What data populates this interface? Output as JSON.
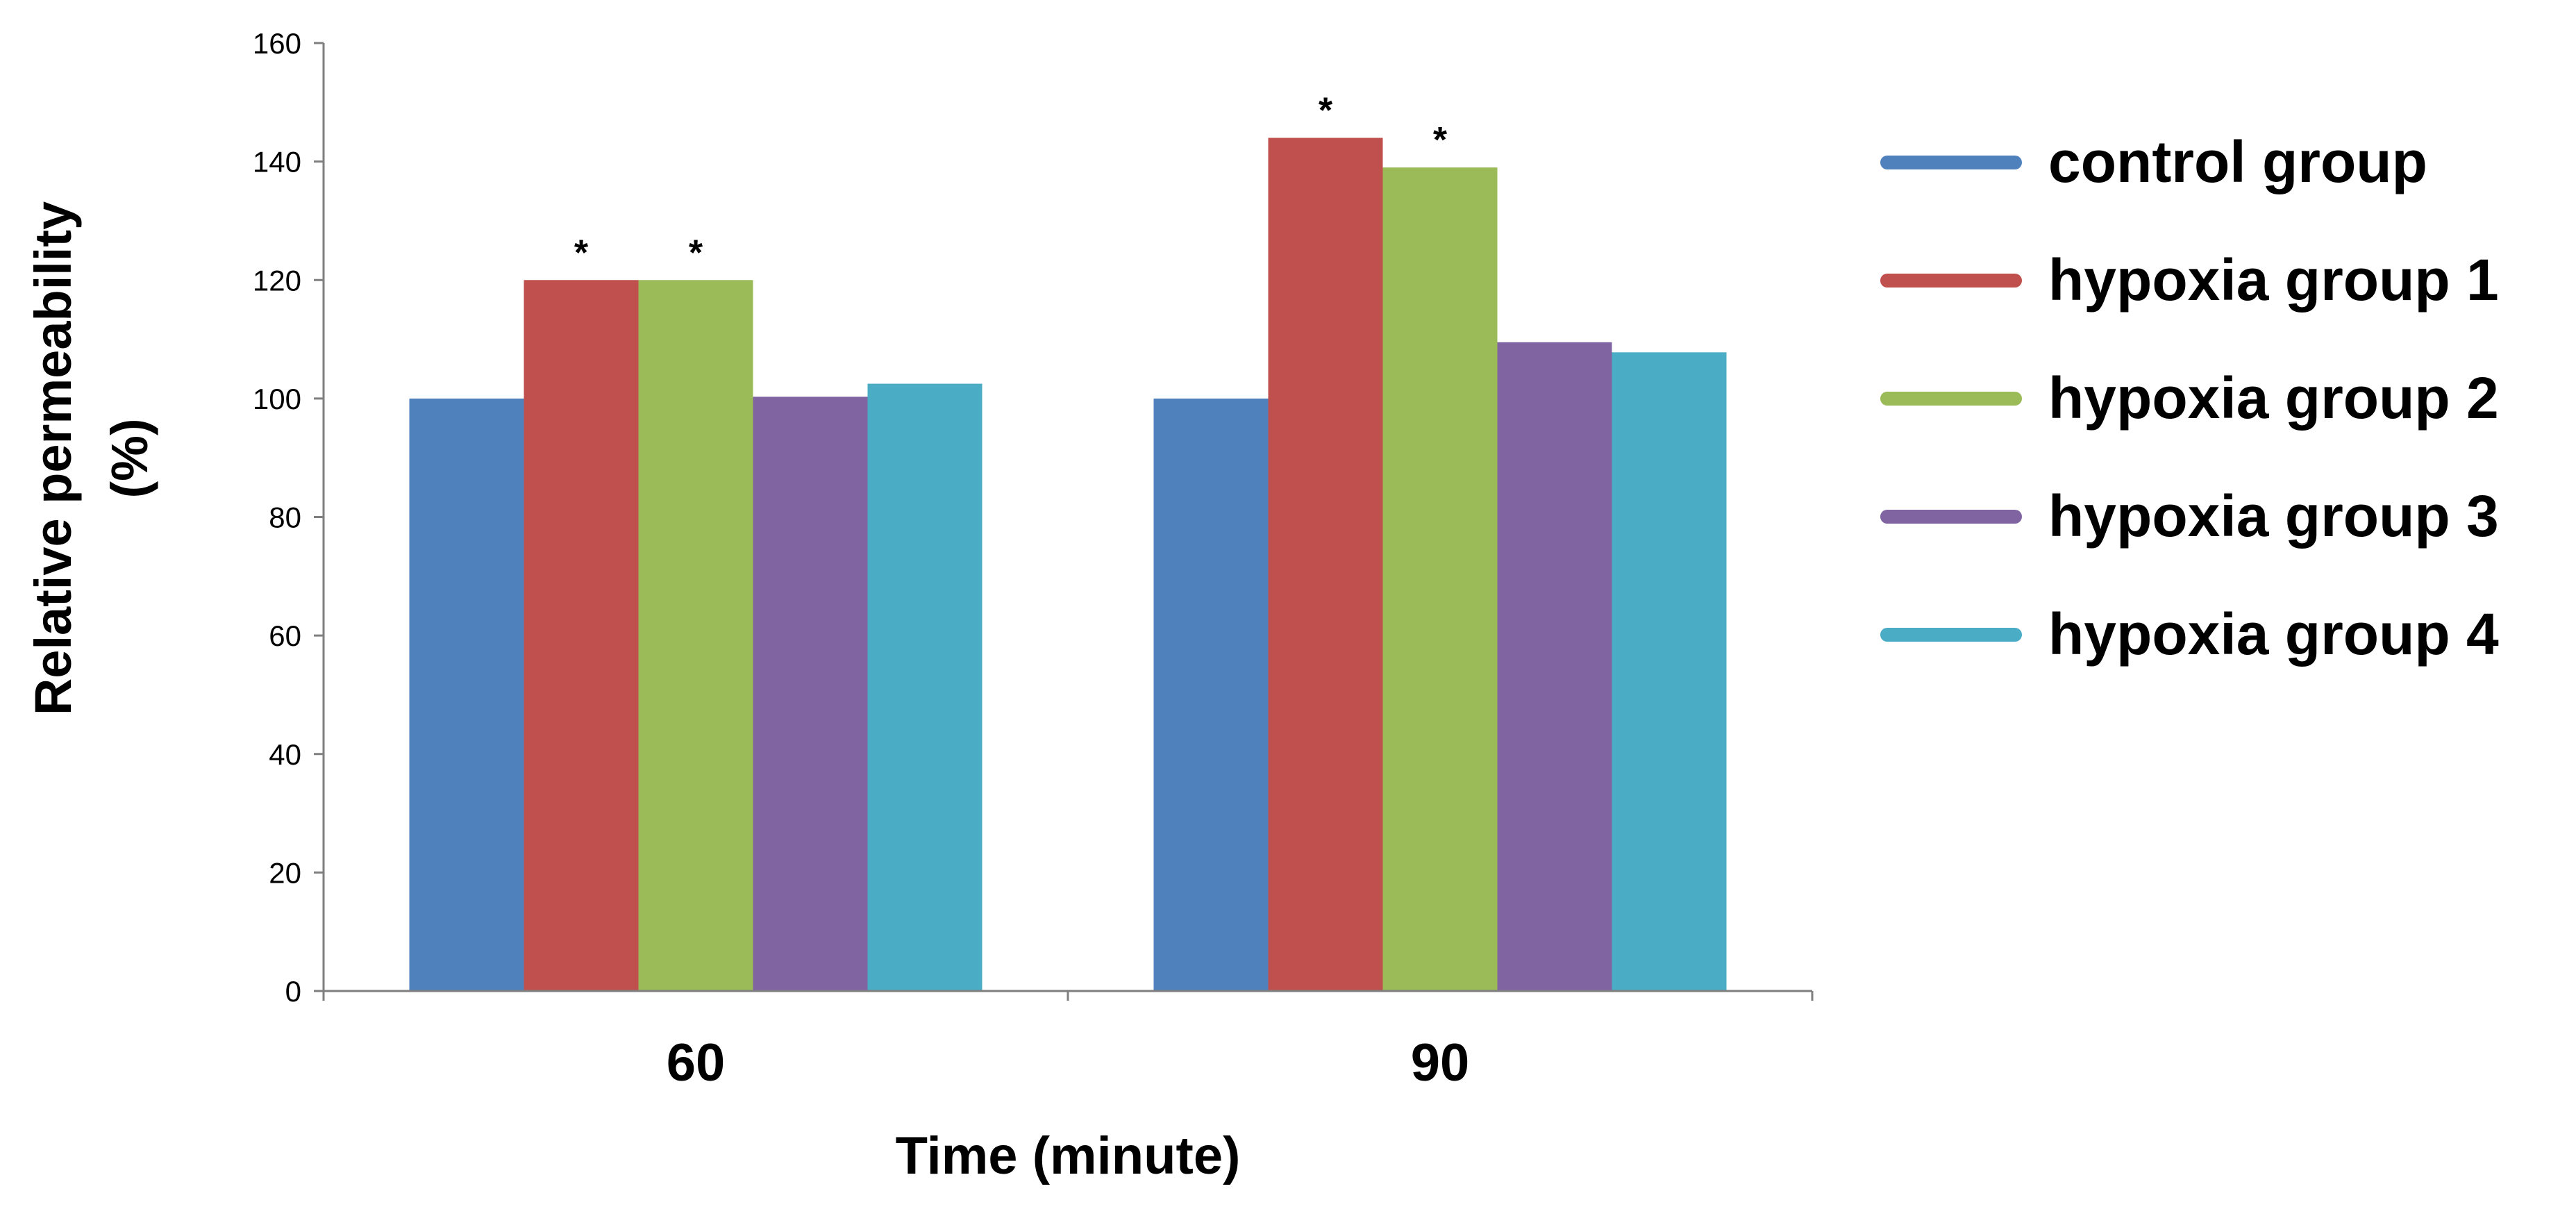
{
  "chart_data": {
    "type": "bar",
    "title": "",
    "xlabel": "Time (minute)",
    "ylabel": "Relative permeability (%)",
    "ylabel_lines": [
      "Relative permeability",
      "(%)"
    ],
    "categories": [
      "60",
      "90"
    ],
    "ylim": [
      0,
      160
    ],
    "yticks": [
      0,
      20,
      40,
      60,
      80,
      100,
      120,
      140,
      160
    ],
    "grid": false,
    "legend_position": "right",
    "series": [
      {
        "name": "control group",
        "values": [
          100,
          100
        ],
        "color": "#4F81BD",
        "significance": [
          "",
          ""
        ]
      },
      {
        "name": "hypoxia group 1",
        "values": [
          120,
          144
        ],
        "color": "#C0504D",
        "significance": [
          "*",
          "*"
        ]
      },
      {
        "name": "hypoxia group 2",
        "values": [
          120,
          139
        ],
        "color": "#9BBB59",
        "significance": [
          "*",
          "*"
        ]
      },
      {
        "name": "hypoxia group 3",
        "values": [
          100.3,
          109.5
        ],
        "color": "#8064A2",
        "significance": [
          "",
          ""
        ]
      },
      {
        "name": "hypoxia group 4",
        "values": [
          102.5,
          107.8
        ],
        "color": "#4BACC6",
        "significance": [
          "",
          ""
        ]
      }
    ]
  }
}
